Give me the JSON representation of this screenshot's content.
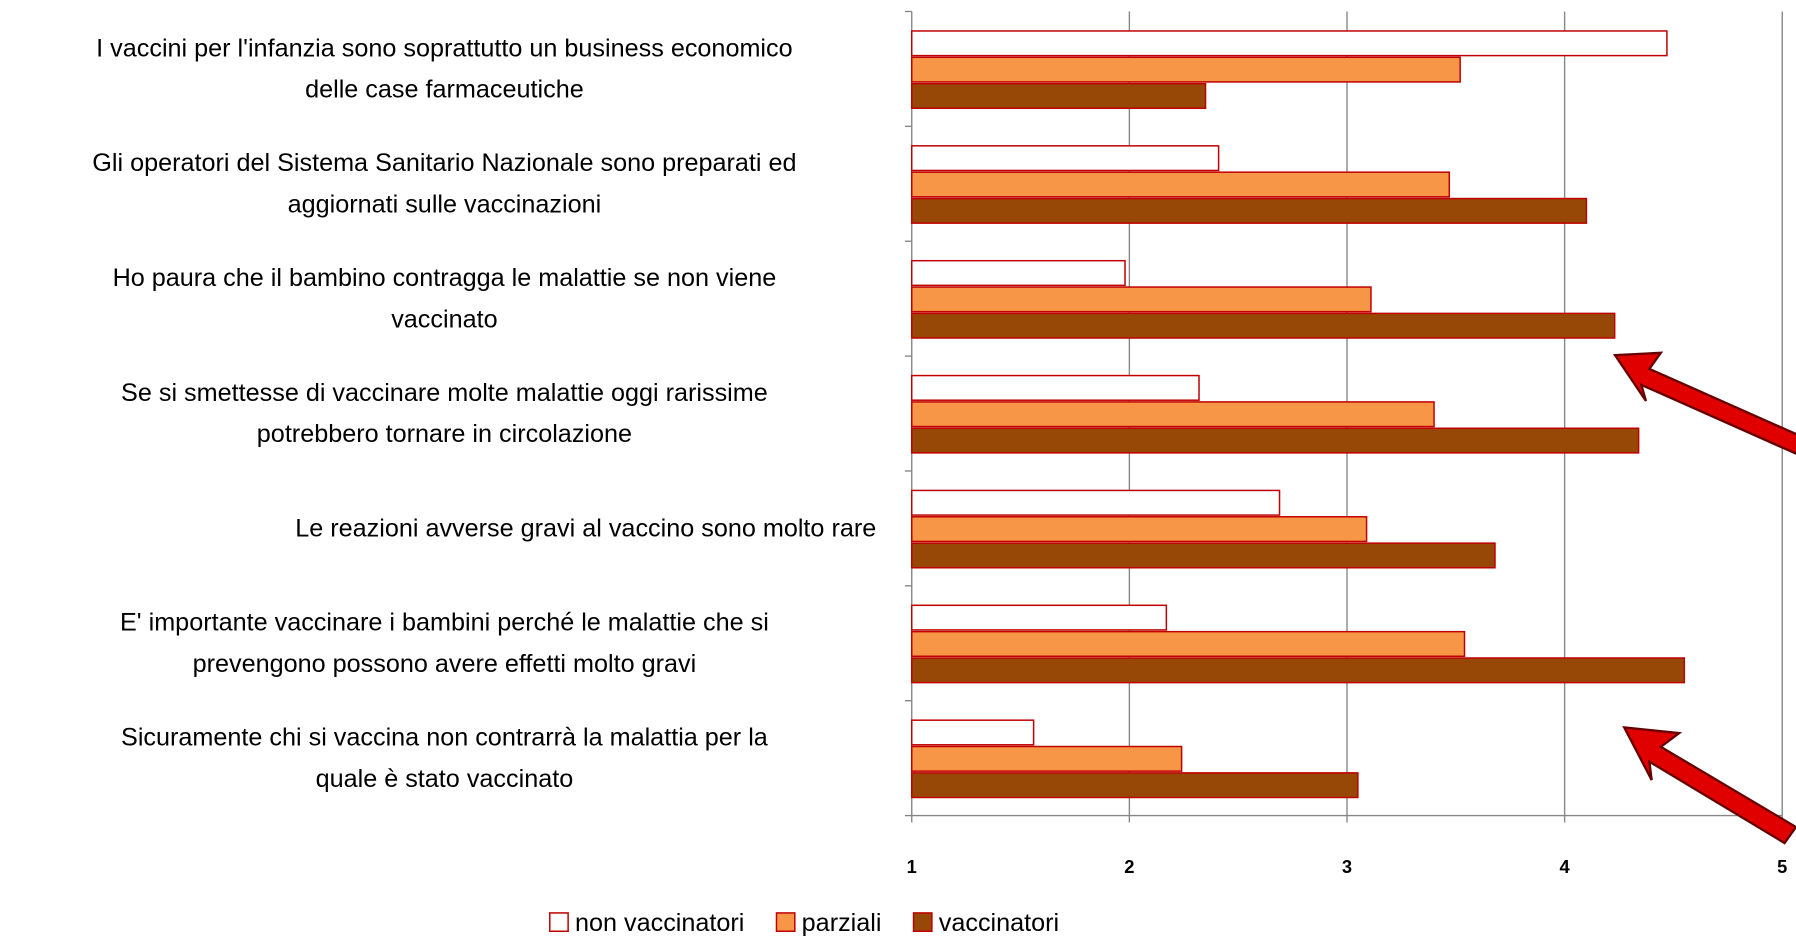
{
  "chart_data": {
    "type": "bar",
    "orientation": "horizontal",
    "categories": [
      "I vaccini per l'infanzia sono soprattutto un business economico\ndelle case farmaceutiche",
      "Gli operatori del Sistema Sanitario  Nazionale sono preparati ed\naggiornati sulle vaccinazioni",
      "Ho paura che il bambino contragga le malattie se non viene\nvaccinato",
      "Se si smettesse di vaccinare molte malattie oggi rarissime\npotrebbero tornare in circolazione",
      "Le reazioni avverse gravi al vaccino sono molto rare",
      "E' importante vaccinare i bambini perché le malattie che si\nprevengono possono avere effetti molto gravi",
      "Sicuramente chi si vaccina non contrarrà la malattia per la\nquale è stato vaccinato"
    ],
    "series": [
      {
        "name": "non vaccinatori",
        "color": "#ffffff",
        "values": [
          4.47,
          2.41,
          1.98,
          2.32,
          2.69,
          2.17,
          1.56
        ]
      },
      {
        "name": "parziali",
        "color": "#f79646",
        "values": [
          3.52,
          3.47,
          3.11,
          3.4,
          3.09,
          3.54,
          2.24
        ]
      },
      {
        "name": "vaccinatori",
        "color": "#974806",
        "values": [
          2.35,
          4.1,
          4.23,
          4.34,
          3.68,
          4.55,
          3.05
        ]
      }
    ],
    "xlim": [
      1,
      5
    ],
    "xticks": [
      1,
      2,
      3,
      4,
      5
    ],
    "grid": true,
    "legend": "bottom"
  }
}
